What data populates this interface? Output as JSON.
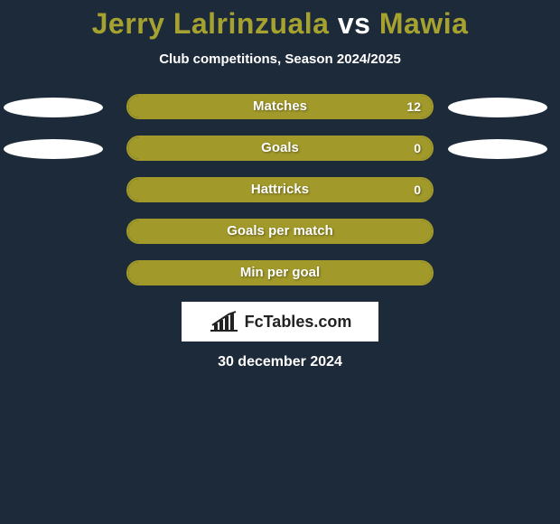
{
  "title": {
    "player1": "Jerry Lalrinzuala",
    "connector": "vs",
    "player2": "Mawia",
    "player1_color": "#a6a22f",
    "connector_color": "#ffffff",
    "player2_color": "#a6a22f",
    "fontsize": 32
  },
  "subtitle": "Club competitions, Season 2024/2025",
  "background_color": "#1d2a3a",
  "bar_style": {
    "shell_width": 340,
    "shell_height": 28,
    "border_color": "#a1992a",
    "fill_color": "#a1992a",
    "border_radius": 14,
    "label_color": "#ffffff",
    "label_fontsize": 15
  },
  "ellipse_style": {
    "width": 110,
    "height": 22,
    "color": "#ffffff"
  },
  "stats": [
    {
      "label": "Matches",
      "value": "12",
      "fill_pct": 100,
      "show_left_ellipse": true,
      "show_right_ellipse": true
    },
    {
      "label": "Goals",
      "value": "0",
      "fill_pct": 100,
      "show_left_ellipse": true,
      "show_right_ellipse": true
    },
    {
      "label": "Hattricks",
      "value": "0",
      "fill_pct": 100,
      "show_left_ellipse": false,
      "show_right_ellipse": false
    },
    {
      "label": "Goals per match",
      "value": "",
      "fill_pct": 100,
      "show_left_ellipse": false,
      "show_right_ellipse": false
    },
    {
      "label": "Min per goal",
      "value": "",
      "fill_pct": 100,
      "show_left_ellipse": false,
      "show_right_ellipse": false
    }
  ],
  "brand": {
    "text": "FcTables.com",
    "box_bg": "#ffffff",
    "text_color": "#222222",
    "icon_stroke": "#222222"
  },
  "date": "30 december 2024"
}
